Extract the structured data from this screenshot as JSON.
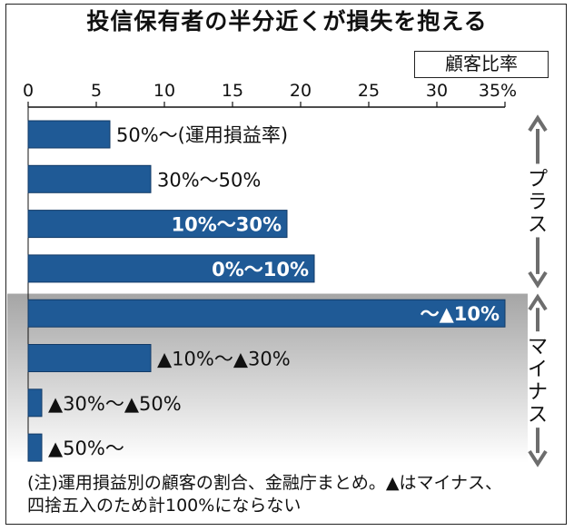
{
  "title": "投信保有者の半分近くが損失を抱える",
  "unit_label": "顧客比率",
  "note_lines": [
    "(注)運用損益別の顧客の割合、金融庁まとめ。▲はマイナス、",
    "四捨五入のため計100%にならない"
  ],
  "chart_data": {
    "type": "bar",
    "orientation": "horizontal",
    "title": "投信保有者の半分近くが損失を抱える",
    "xlabel": "顧客比率",
    "xlim": [
      0,
      35
    ],
    "x_ticks": [
      "0",
      "5",
      "10",
      "15",
      "20",
      "25",
      "30",
      "35%"
    ],
    "categories": [
      "50%〜(運用損益率)",
      "30%〜50%",
      "10%〜30%",
      "0%〜10%",
      "〜▲10%",
      "▲10%〜▲30%",
      "▲30%〜▲50%",
      "▲50%〜"
    ],
    "values": [
      6,
      9,
      19,
      21,
      35,
      9,
      1,
      1
    ],
    "label_inside": [
      false,
      false,
      true,
      true,
      true,
      false,
      false,
      false
    ],
    "groups": [
      {
        "label": "プラス",
        "categories": [
          0,
          1,
          2,
          3
        ]
      },
      {
        "label": "マイナス",
        "categories": [
          4,
          5,
          6,
          7
        ]
      }
    ],
    "colors": {
      "bar": "#1f5a96",
      "bar_edge": "#123a66",
      "minus_background_top": "#a5a5a5",
      "minus_background_bottom": "#ffffff",
      "arrow": "#6d6d6d"
    }
  }
}
